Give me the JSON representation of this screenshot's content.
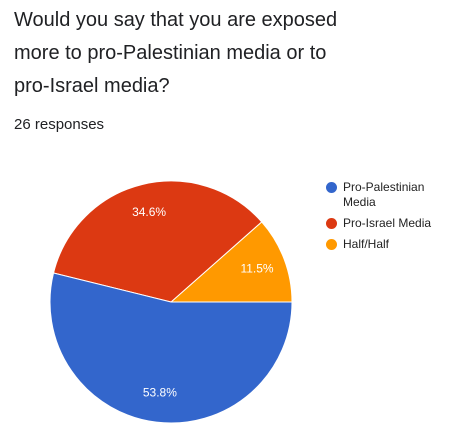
{
  "chart_data": {
    "type": "pie",
    "title": "Would you say that you are exposed more to pro-Palestinian media or to pro-Israel media?",
    "subtitle": "26 responses",
    "categories": [
      "Pro-Palestinian Media",
      "Pro-Israel Media",
      "Half/Half"
    ],
    "values": [
      53.8,
      34.6,
      11.5
    ],
    "value_labels": [
      "53.8%",
      "34.6%",
      "11.5%"
    ],
    "colors": [
      "#3366cc",
      "#dc3912",
      "#ff9900"
    ],
    "legend": "right"
  }
}
